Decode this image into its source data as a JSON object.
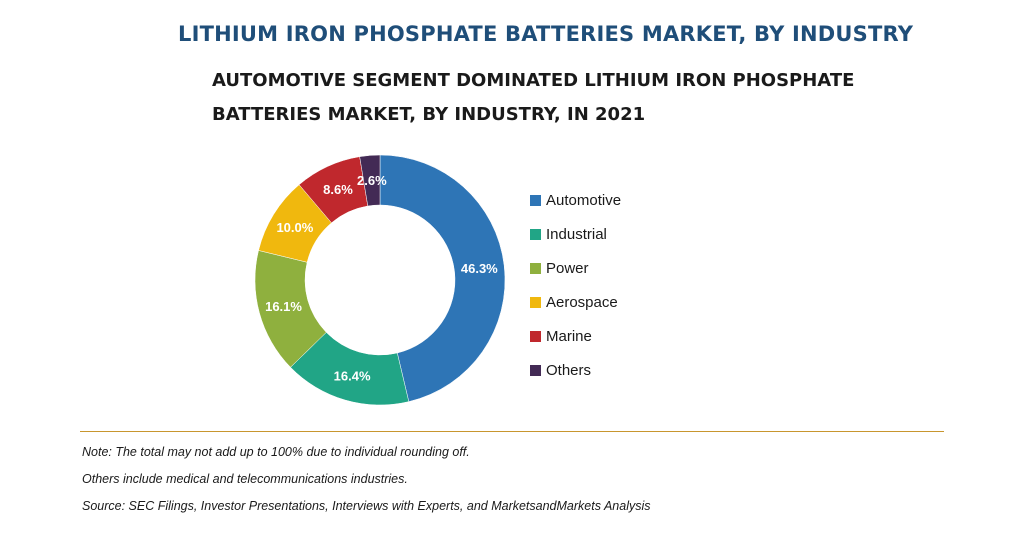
{
  "chart_data": {
    "type": "pie",
    "title": "LITHIUM IRON PHOSPHATE BATTERIES MARKET, BY INDUSTRY",
    "subtitle": "AUTOMOTIVE SEGMENT DOMINATED LITHIUM IRON PHOSPHATE BATTERIES MARKET, BY INDUSTRY, IN 2021",
    "donut": true,
    "legend_position": "right",
    "categories": [
      "Automotive",
      "Industrial",
      "Power",
      "Aerospace",
      "Marine",
      "Others"
    ],
    "values": [
      46.3,
      16.4,
      16.1,
      10.0,
      8.6,
      2.6
    ],
    "labels": [
      "46.3%",
      "16.4%",
      "16.1%",
      "10.0%",
      "8.6%",
      "2.6%"
    ],
    "colors": [
      "#2e75b6",
      "#21a586",
      "#8fb03e",
      "#f0b80e",
      "#c0282d",
      "#432a55"
    ]
  },
  "notes": [
    "Note: The total may not add up to 100% due to individual rounding off.",
    "Others include medical and telecommunications industries.",
    "Source: SEC Filings, Investor Presentations, Interviews with Experts, and MarketsandMarkets Analysis"
  ]
}
